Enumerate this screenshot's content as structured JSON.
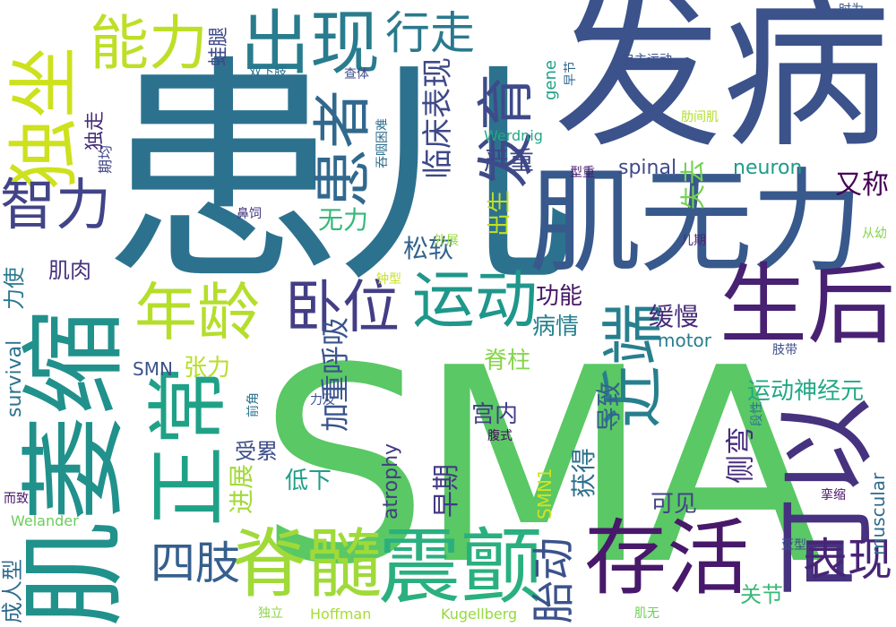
{
  "words": [
    {
      "text": "SMA",
      "color": "#5ac864"
    },
    {
      "text": "患儿",
      "color": "#2c728e"
    },
    {
      "text": "发病",
      "color": "#3b528b"
    },
    {
      "text": "肌无力",
      "color": "#38598c"
    },
    {
      "text": "生后",
      "color": "#482173"
    },
    {
      "text": "肌萎缩",
      "color": "#21918c"
    },
    {
      "text": "可以",
      "color": "#46327e"
    },
    {
      "text": "存活",
      "color": "#48186a"
    },
    {
      "text": "震颤",
      "color": "#2ab07f"
    },
    {
      "text": "脊髓",
      "color": "#a0da39"
    },
    {
      "text": "正常",
      "color": "#1fa187"
    },
    {
      "text": "独坐",
      "color": "#cde11d"
    },
    {
      "text": "出现",
      "color": "#287c8e"
    },
    {
      "text": "年龄",
      "color": "#b5de2b"
    },
    {
      "text": "运动",
      "color": "#1f978b"
    },
    {
      "text": "近端",
      "color": "#277f8e"
    },
    {
      "text": "患者",
      "color": "#31688e"
    },
    {
      "text": "发育",
      "color": "#3e4a89"
    },
    {
      "text": "卧位",
      "color": "#433e85"
    },
    {
      "text": "能力",
      "color": "#bddf26"
    },
    {
      "text": "行走",
      "color": "#29798e"
    },
    {
      "text": "智力",
      "color": "#414487"
    },
    {
      "text": "表现",
      "color": "#482475"
    },
    {
      "text": "四肢",
      "color": "#355f8d"
    },
    {
      "text": "胎动",
      "color": "#3b528b"
    },
    {
      "text": "临床表现",
      "color": "#3e4989"
    },
    {
      "text": "严重",
      "color": "#404688"
    },
    {
      "text": "无力",
      "color": "#35b779"
    },
    {
      "text": "出生",
      "color": "#c0df25"
    },
    {
      "text": "失去",
      "color": "#75d054"
    },
    {
      "text": "又称",
      "color": "#440154"
    },
    {
      "text": "松软",
      "color": "#33638d"
    },
    {
      "text": "功能",
      "color": "#481769"
    },
    {
      "text": "缓慢",
      "color": "#472c7a"
    },
    {
      "text": "病情",
      "color": "#26828e"
    },
    {
      "text": "脊柱",
      "color": "#86d549"
    },
    {
      "text": "运动神经元",
      "color": "#22a884"
    },
    {
      "text": "张力",
      "color": "#b8de29"
    },
    {
      "text": "加重呼吸",
      "color": "#3a548c"
    },
    {
      "text": "宫内",
      "color": "#423f85"
    },
    {
      "text": "导致",
      "color": "#34618d"
    },
    {
      "text": "侧弯",
      "color": "#472d7b"
    },
    {
      "text": "受累",
      "color": "#3d4e8a"
    },
    {
      "text": "低下",
      "color": "#1f9e89"
    },
    {
      "text": "获得",
      "color": "#2d708e"
    },
    {
      "text": "早期",
      "color": "#443983"
    },
    {
      "text": "进展",
      "color": "#a2da37"
    },
    {
      "text": "可见",
      "color": "#414487"
    },
    {
      "text": "关节",
      "color": "#38b977"
    },
    {
      "text": "力使",
      "color": "#2a788e"
    },
    {
      "text": "肌肉",
      "color": "#46337f"
    },
    {
      "text": "成人型",
      "color": "#2f6c8e"
    },
    {
      "text": "spinal",
      "color": "#3e4a89"
    },
    {
      "text": "neuron",
      "color": "#1e9b8a"
    },
    {
      "text": "motor",
      "color": "#287d8e"
    },
    {
      "text": "SMN",
      "color": "#3b528b"
    },
    {
      "text": "survival",
      "color": "#2c728e"
    },
    {
      "text": "atrophy",
      "color": "#433d84"
    },
    {
      "text": "SMN1",
      "color": "#d2e21b"
    },
    {
      "text": "muscular",
      "color": "#2f6b8e"
    },
    {
      "text": "gene",
      "color": "#1fa088"
    },
    {
      "text": "Werdnig",
      "color": "#22a884"
    },
    {
      "text": "Welander",
      "color": "#6ccd5a"
    },
    {
      "text": "Hoffman",
      "color": "#a8db34"
    },
    {
      "text": "Kugellberg",
      "color": "#95d840"
    },
    {
      "text": "蛙腿",
      "color": "#3f4788"
    },
    {
      "text": "独走",
      "color": "#472c7a"
    },
    {
      "text": "双下肢",
      "color": "#2c718e"
    },
    {
      "text": "期均",
      "color": "#404588"
    },
    {
      "text": "查体",
      "color": "#3d4d8a"
    },
    {
      "text": "吞咽困难",
      "color": "#2e6f8e"
    },
    {
      "text": "鼻饲",
      "color": "#453581"
    },
    {
      "text": "型重",
      "color": "#481b6d"
    },
    {
      "text": "肋间肌",
      "color": "#b2dd2d"
    },
    {
      "text": "自主运动",
      "color": "#3c4f8a"
    },
    {
      "text": "时为",
      "color": "#38588c"
    },
    {
      "text": "早节",
      "color": "#31678e"
    },
    {
      "text": "外展",
      "color": "#97d83f"
    },
    {
      "text": "儿期",
      "color": "#482878"
    },
    {
      "text": "从幼",
      "color": "#85d54a"
    },
    {
      "text": "钟型",
      "color": "#cae11f"
    },
    {
      "text": "前角",
      "color": "#2c738e"
    },
    {
      "text": "力及",
      "color": "#3a538b"
    },
    {
      "text": "腹式",
      "color": "#460b5e"
    },
    {
      "text": "肢带",
      "color": "#3d4e8a"
    },
    {
      "text": "段性",
      "color": "#2b758e"
    },
    {
      "text": "而致",
      "color": "#481769"
    },
    {
      "text": "挛缩",
      "color": "#481668"
    },
    {
      "text": "亚型",
      "color": "#3b518b"
    },
    {
      "text": "独立",
      "color": "#8bd646"
    },
    {
      "text": "肌无",
      "color": "#70cf57"
    }
  ]
}
